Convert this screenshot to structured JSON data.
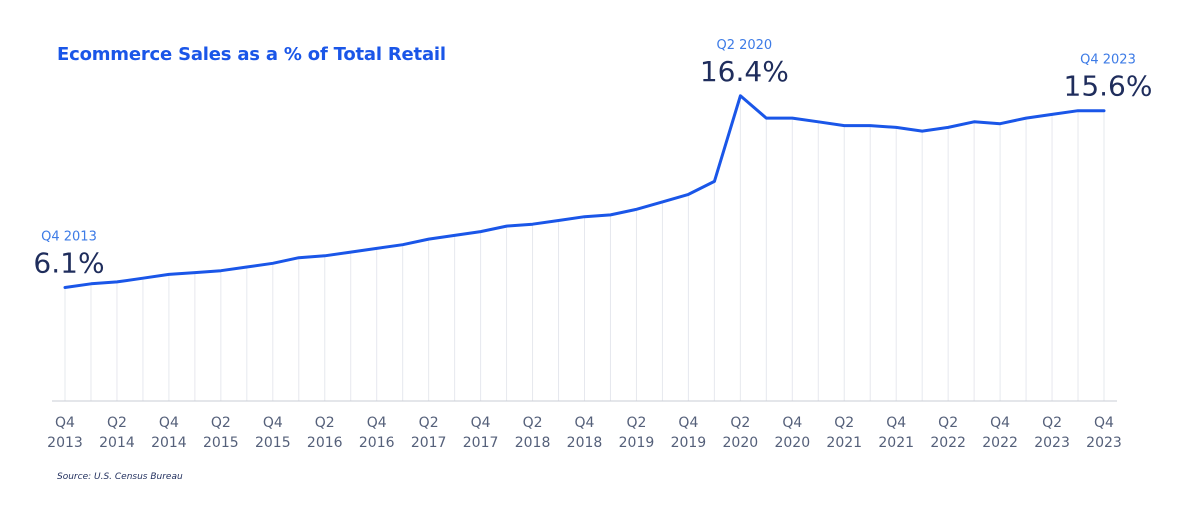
{
  "chart_data": {
    "type": "line",
    "title": "Ecommerce Sales as a % of Total Retail",
    "source": "Source: U.S. Census Bureau",
    "quarters": [
      "Q4 2013",
      "Q1 2014",
      "Q2 2014",
      "Q3 2014",
      "Q4 2014",
      "Q1 2015",
      "Q2 2015",
      "Q3 2015",
      "Q4 2015",
      "Q1 2016",
      "Q2 2016",
      "Q3 2016",
      "Q4 2016",
      "Q1 2017",
      "Q2 2017",
      "Q3 2017",
      "Q4 2017",
      "Q1 2018",
      "Q2 2018",
      "Q3 2018",
      "Q4 2018",
      "Q1 2019",
      "Q2 2019",
      "Q3 2019",
      "Q4 2019",
      "Q1 2020",
      "Q2 2020",
      "Q3 2020",
      "Q4 2020",
      "Q1 2021",
      "Q2 2021",
      "Q3 2021",
      "Q4 2021",
      "Q1 2022",
      "Q2 2022",
      "Q3 2022",
      "Q4 2022",
      "Q1 2023",
      "Q2 2023",
      "Q3 2023",
      "Q4 2023"
    ],
    "values": [
      6.1,
      6.3,
      6.4,
      6.6,
      6.8,
      6.9,
      7.0,
      7.2,
      7.4,
      7.7,
      7.8,
      8.0,
      8.2,
      8.4,
      8.7,
      8.9,
      9.1,
      9.4,
      9.5,
      9.7,
      9.9,
      10.0,
      10.3,
      10.7,
      11.1,
      11.8,
      16.4,
      15.2,
      15.2,
      15.0,
      14.8,
      14.8,
      14.7,
      14.5,
      14.7,
      15.0,
      14.9,
      15.2,
      15.4,
      15.6,
      15.6
    ],
    "x_tick_labels": [
      {
        "q": "Q4",
        "y": "2013"
      },
      {
        "q": "Q2",
        "y": "2014"
      },
      {
        "q": "Q4",
        "y": "2014"
      },
      {
        "q": "Q2",
        "y": "2015"
      },
      {
        "q": "Q4",
        "y": "2015"
      },
      {
        "q": "Q2",
        "y": "2016"
      },
      {
        "q": "Q4",
        "y": "2016"
      },
      {
        "q": "Q2",
        "y": "2017"
      },
      {
        "q": "Q4",
        "y": "2017"
      },
      {
        "q": "Q2",
        "y": "2018"
      },
      {
        "q": "Q4",
        "y": "2018"
      },
      {
        "q": "Q2",
        "y": "2019"
      },
      {
        "q": "Q4",
        "y": "2019"
      },
      {
        "q": "Q2",
        "y": "2020"
      },
      {
        "q": "Q4",
        "y": "2020"
      },
      {
        "q": "Q2",
        "y": "2021"
      },
      {
        "q": "Q4",
        "y": "2021"
      },
      {
        "q": "Q2",
        "y": "2022"
      },
      {
        "q": "Q4",
        "y": "2022"
      },
      {
        "q": "Q2",
        "y": "2023"
      },
      {
        "q": "Q4",
        "y": "2023"
      }
    ],
    "annotations": [
      {
        "quarter": "Q4 2013",
        "label": "Q4 2013",
        "value_text": "6.1%"
      },
      {
        "quarter": "Q2 2020",
        "label": "Q2 2020",
        "value_text": "16.4%"
      },
      {
        "quarter": "Q4 2023",
        "label": "Q4 2023",
        "value_text": "15.6%"
      }
    ],
    "ylim": [
      0,
      18
    ],
    "grid": "vertical",
    "xlabel": "",
    "ylabel": "",
    "colors": {
      "line": "#1a56e8",
      "title": "#1a56e8",
      "callout_label": "#3d7be6",
      "callout_value": "#1f2d5c",
      "tick": "#55607a"
    }
  }
}
